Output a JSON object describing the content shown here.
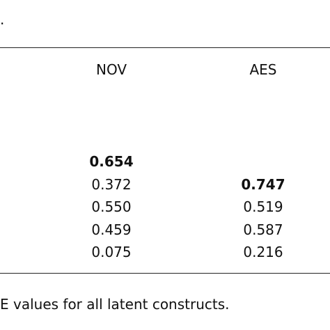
{
  "caption": ".",
  "table": {
    "columns": [
      "NOV",
      "AES"
    ],
    "rows": [
      [
        "0.654",
        null
      ],
      [
        "0.372",
        "0.747"
      ],
      [
        "0.550",
        "0.519"
      ],
      [
        "0.459",
        "0.587"
      ],
      [
        "0.075",
        "0.216"
      ]
    ],
    "bold": [
      [
        true,
        false
      ],
      [
        false,
        true
      ],
      [
        false,
        false
      ],
      [
        false,
        false
      ],
      [
        false,
        false
      ]
    ]
  },
  "footnote": "E values for all latent constructs."
}
